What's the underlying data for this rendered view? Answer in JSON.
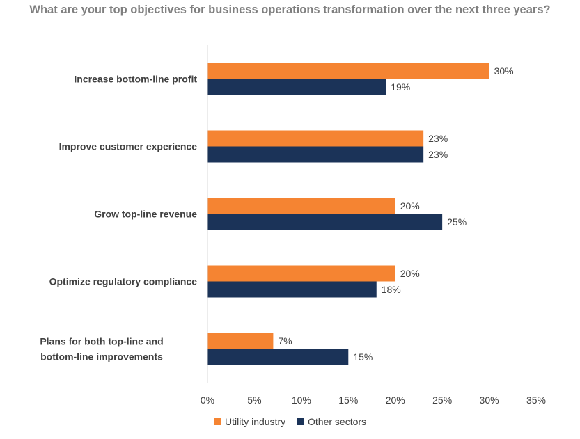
{
  "chart_data": {
    "type": "bar",
    "orientation": "horizontal",
    "title": "What are your top objectives for business operations transformation over the next three years?",
    "categories": [
      "Increase bottom-line profit",
      "Improve customer experience",
      "Grow top-line revenue",
      "Optimize regulatory compliance",
      "Plans for both top-line and bottom-line improvements"
    ],
    "series": [
      {
        "name": "Utility industry",
        "color": "#F58432",
        "values": [
          30,
          23,
          20,
          20,
          7
        ],
        "labels": [
          "30%",
          "23%",
          "20%",
          "20%",
          "7%"
        ]
      },
      {
        "name": "Other sectors",
        "color": "#1B3358",
        "values": [
          19,
          23,
          25,
          18,
          15
        ],
        "labels": [
          "19%",
          "23%",
          "25%",
          "18%",
          "15%"
        ]
      }
    ],
    "xlim": [
      0,
      35
    ],
    "xticks": [
      "0%",
      "5%",
      "10%",
      "15%",
      "20%",
      "25%",
      "30%",
      "35%"
    ],
    "xlabel": "",
    "ylabel": "",
    "grid": false,
    "legend_position": "bottom"
  }
}
